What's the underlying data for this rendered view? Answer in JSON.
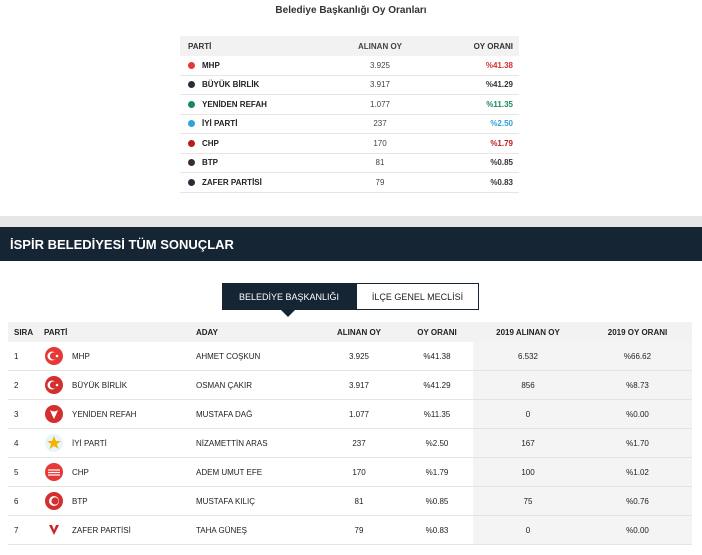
{
  "top_title": "Belediye Başkanlığı Oy Oranları",
  "summary": {
    "headers": {
      "party": "PARTİ",
      "votes": "ALINAN OY",
      "rate": "OY ORANI"
    },
    "rows": [
      {
        "party": "MHP",
        "votes": "3.925",
        "rate": "%41.38",
        "dot_color": "#e53935",
        "rate_color": "#d32f2f"
      },
      {
        "party": "BÜYÜK BİRLİK",
        "votes": "3.917",
        "rate": "%41.29",
        "dot_color": "#2b2b3a",
        "rate_color": "#333333"
      },
      {
        "party": "YENİDEN REFAH",
        "votes": "1.077",
        "rate": "%11.35",
        "dot_color": "#1a8a5a",
        "rate_color": "#1a8a5a"
      },
      {
        "party": "İYİ PARTİ",
        "votes": "237",
        "rate": "%2.50",
        "dot_color": "#2ea3d8",
        "rate_color": "#2ea3d8"
      },
      {
        "party": "CHP",
        "votes": "170",
        "rate": "%1.79",
        "dot_color": "#b71c1c",
        "rate_color": "#b71c1c"
      },
      {
        "party": "BTP",
        "votes": "81",
        "rate": "%0.85",
        "dot_color": "#3a2a3a",
        "rate_color": "#333333"
      },
      {
        "party": "ZAFER PARTİSİ",
        "votes": "79",
        "rate": "%0.83",
        "dot_color": "#2b2b3a",
        "rate_color": "#333333"
      }
    ]
  },
  "section_title": "İSPİR BELEDİYESİ TÜM SONUÇLAR",
  "tabs": {
    "mayor": "BELEDİYE BAŞKANLIĞI",
    "council": "İLÇE GENEL MECLİSİ"
  },
  "results": {
    "headers": {
      "rank": "SIRA",
      "party": "PARTİ",
      "candidate": "ADAY",
      "votes": "ALINAN OY",
      "rate": "OY ORANI",
      "votes_2019": "2019 ALINAN OY",
      "rate_2019": "2019 OY ORANI"
    },
    "rows": [
      {
        "rank": "1",
        "party": "MHP",
        "candidate": "AHMET COŞKUN",
        "votes": "3.925",
        "rate": "%41.38",
        "votes_2019": "6.532",
        "rate_2019": "%66.62",
        "logo": "mhp-logo",
        "logo_color": "#e53935"
      },
      {
        "rank": "2",
        "party": "BÜYÜK BİRLİK",
        "candidate": "OSMAN ÇAKIR",
        "votes": "3.917",
        "rate": "%41.29",
        "votes_2019": "856",
        "rate_2019": "%8.73",
        "logo": "bbp-logo",
        "logo_color": "#d32f2f"
      },
      {
        "rank": "3",
        "party": "YENİDEN REFAH",
        "candidate": "MUSTAFA DAĞ",
        "votes": "1.077",
        "rate": "%11.35",
        "votes_2019": "0",
        "rate_2019": "%0.00",
        "logo": "yrp-logo",
        "logo_color": "#d32f2f"
      },
      {
        "rank": "4",
        "party": "İYİ PARTİ",
        "candidate": "NİZAMETTİN ARAS",
        "votes": "237",
        "rate": "%2.50",
        "votes_2019": "167",
        "rate_2019": "%1.70",
        "logo": "iyi-logo",
        "logo_color": "#2ea3d8"
      },
      {
        "rank": "5",
        "party": "CHP",
        "candidate": "ADEM UMUT EFE",
        "votes": "170",
        "rate": "%1.79",
        "votes_2019": "100",
        "rate_2019": "%1.02",
        "logo": "chp-logo",
        "logo_color": "#e53935"
      },
      {
        "rank": "6",
        "party": "BTP",
        "candidate": "MUSTAFA KILIÇ",
        "votes": "81",
        "rate": "%0.85",
        "votes_2019": "75",
        "rate_2019": "%0.76",
        "logo": "btp-logo",
        "logo_color": "#d32f2f"
      },
      {
        "rank": "7",
        "party": "ZAFER PARTİSİ",
        "candidate": "TAHA GÜNEŞ",
        "votes": "79",
        "rate": "%0.83",
        "votes_2019": "0",
        "rate_2019": "%0.00",
        "logo": "zafer-logo",
        "logo_color": "#c62828"
      }
    ]
  }
}
